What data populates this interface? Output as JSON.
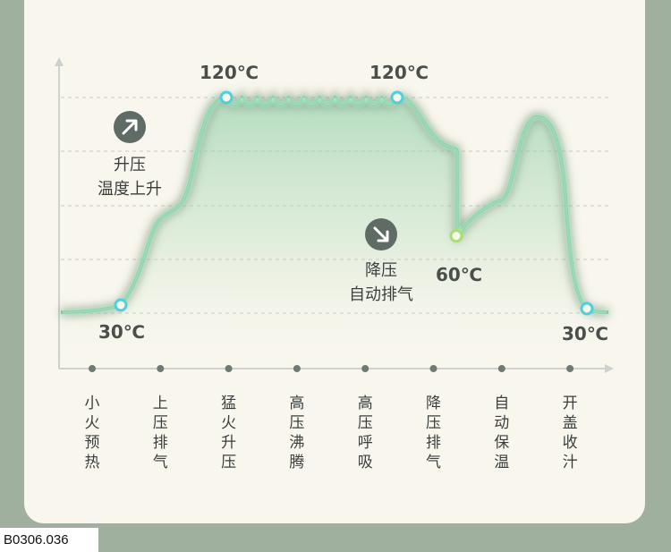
{
  "chart_data": {
    "type": "line",
    "title": "",
    "xlabel": "",
    "ylabel": "",
    "stages": [
      "小火预热",
      "上压排气",
      "猛火升压",
      "高压沸腾",
      "高压呼吸",
      "降压排气",
      "自动保温",
      "开盖收汁"
    ],
    "key_points": [
      {
        "label": "30℃",
        "value": 30,
        "stage": "小火预热"
      },
      {
        "label": "120℃",
        "value": 120,
        "stage": "猛火升压"
      },
      {
        "label": "120℃",
        "value": 120,
        "stage": "高压呼吸"
      },
      {
        "label": "60℃",
        "value": 60,
        "stage": "降压排气"
      },
      {
        "label": "30℃",
        "value": 30,
        "stage": "开盖收汁"
      }
    ],
    "annotations": [
      {
        "icon": "arrow-up-right-icon",
        "lines": [
          "升压",
          "温度上升"
        ]
      },
      {
        "icon": "arrow-down-right-icon",
        "lines": [
          "降压",
          "自动排气"
        ]
      }
    ],
    "grid": true,
    "colors": {
      "line_glow": "#9ff0c4",
      "line_dark": "#6f8f78",
      "marker": "#4fd0dc",
      "marker_mid": "#a8e070",
      "text": "#4a4f4c",
      "icon_bg": "#5f6b65"
    }
  },
  "footer_code": "B0306.036"
}
